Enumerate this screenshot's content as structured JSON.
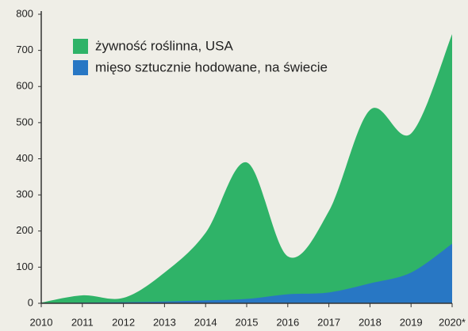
{
  "chart_data": {
    "type": "area",
    "categories": [
      "2010",
      "2011",
      "2012",
      "2013",
      "2014",
      "2015",
      "2016",
      "2017",
      "2018",
      "2019",
      "2020*"
    ],
    "series": [
      {
        "name": "żywność roślinna, USA",
        "color": "#2fb368",
        "values": [
          2,
          22,
          15,
          85,
          195,
          390,
          130,
          255,
          535,
          470,
          745
        ]
      },
      {
        "name": "mięso sztucznie hodowane, na świecie",
        "color": "#2877c4",
        "values": [
          0,
          2,
          3,
          5,
          8,
          12,
          25,
          30,
          55,
          85,
          165
        ]
      }
    ],
    "ylim": [
      0,
      800
    ],
    "yticks": [
      0,
      100,
      200,
      300,
      400,
      500,
      600,
      700,
      800
    ],
    "legend": "upper left"
  }
}
